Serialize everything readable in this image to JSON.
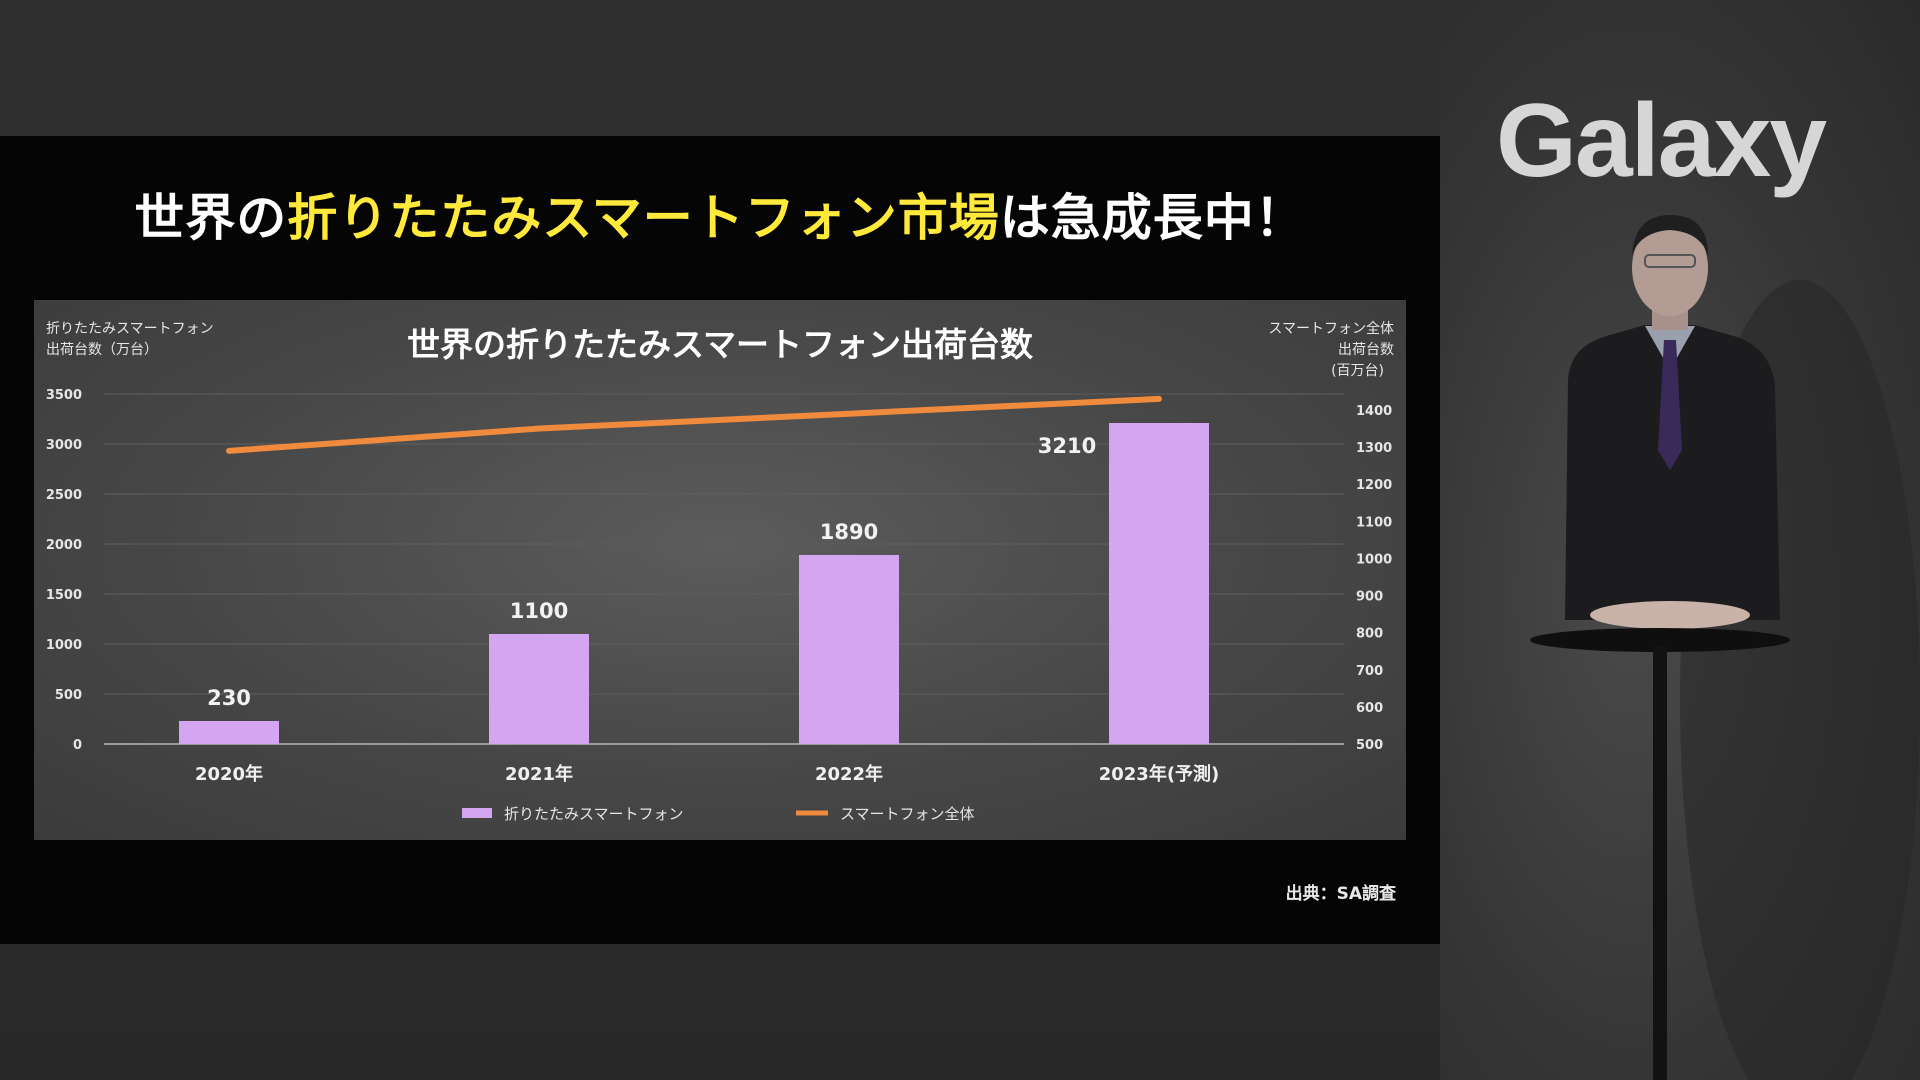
{
  "slide": {
    "title_part1": "世界の",
    "title_part2": "折りたたみスマートフォン市場",
    "title_part3": "は急成長中！",
    "source": "出典：SA調査"
  },
  "brand": {
    "logo": "Galaxy"
  },
  "chart_data": {
    "type": "bar",
    "title": "世界の折りたたみスマートフォン出荷台数",
    "categories": [
      "2020年",
      "2021年",
      "2022年",
      "2023年(予測)"
    ],
    "y_left_label_line1": "折りたたみスマートフォン",
    "y_left_label_line2": "出荷台数（万台）",
    "y_right_label_line1": "スマートフォン全体",
    "y_right_label_line2": "出荷台数",
    "y_right_label_line3": "(百万台)",
    "ylim_left": [
      0,
      3500
    ],
    "yticks_left": [
      0,
      500,
      1000,
      1500,
      2000,
      2500,
      3000,
      3500
    ],
    "ylim_right": [
      500,
      1400
    ],
    "yticks_right": [
      500,
      600,
      700,
      800,
      900,
      1000,
      1100,
      1200,
      1300,
      1400
    ],
    "grid": true,
    "legend_position": "bottom",
    "series": [
      {
        "name": "折りたたみスマートフォン",
        "type": "bar",
        "axis": "left",
        "values": [
          230,
          1100,
          1890,
          3210
        ],
        "data_labels": [
          "230",
          "1100",
          "1890",
          "3210"
        ]
      },
      {
        "name": "スマートフォン全体",
        "type": "line",
        "axis": "right",
        "values": [
          1290,
          1350,
          1390,
          1430
        ]
      }
    ],
    "colors": {
      "bar": "#d4a6f2",
      "line": "#f08a3c"
    }
  }
}
